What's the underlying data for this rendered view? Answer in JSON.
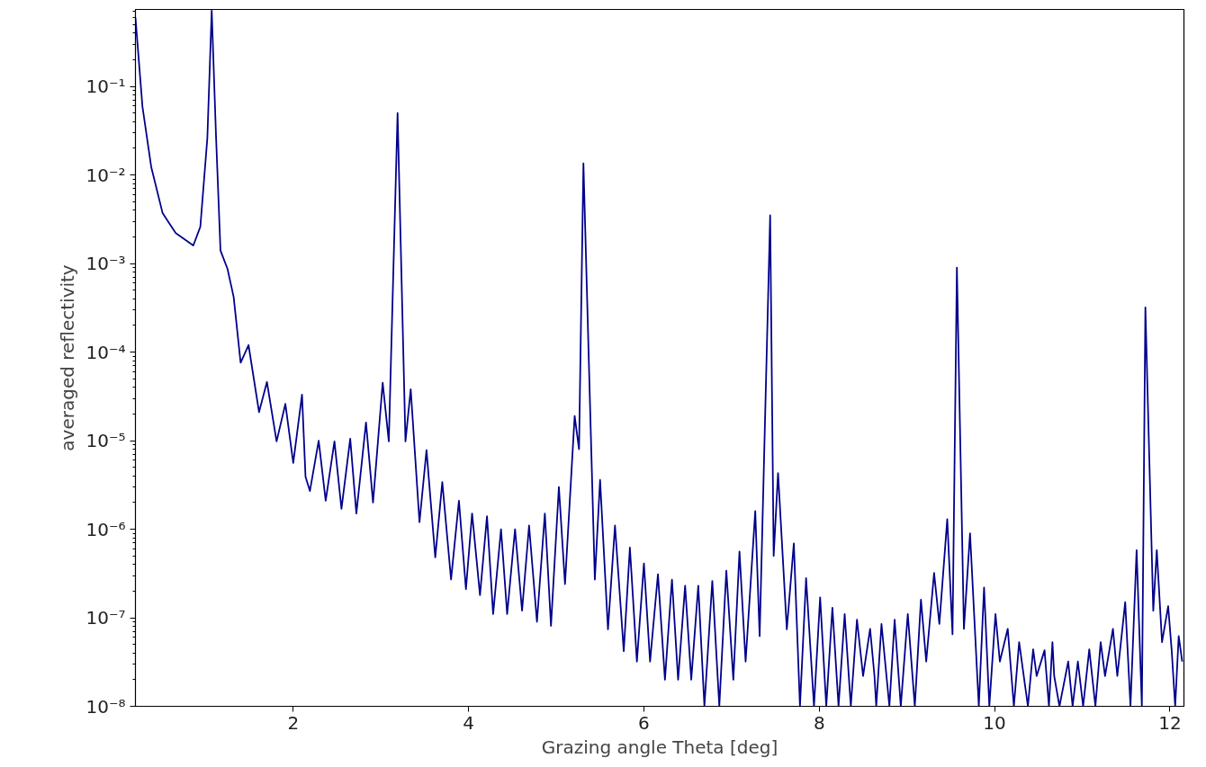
{
  "chart_data": {
    "type": "line",
    "xlabel": "Grazing angle Theta [deg]",
    "ylabel": "averaged reflectivity",
    "log": "y",
    "grid": false,
    "marker": "none",
    "line_style": "solid",
    "xlim": [
      0.2,
      12.16
    ],
    "ylim": [
      1e-08,
      0.74
    ],
    "xticks": [
      2,
      4,
      6,
      8,
      10,
      12
    ],
    "yticks": [
      {
        "value": 1e-08,
        "label": "10⁻⁸"
      },
      {
        "value": 1e-07,
        "label": "10⁻⁷"
      },
      {
        "value": 1e-06,
        "label": "10⁻⁶"
      },
      {
        "value": 1e-05,
        "label": "10⁻⁵"
      },
      {
        "value": 0.0001,
        "label": "10⁻⁴"
      },
      {
        "value": 0.001,
        "label": "10⁻³"
      },
      {
        "value": 0.01,
        "label": "10⁻²"
      },
      {
        "value": 0.1,
        "label": "10⁻¹"
      }
    ],
    "series": [
      {
        "color": "#00008b",
        "x": [
          0.2,
          0.28,
          0.38,
          0.51,
          0.66,
          0.86,
          0.94,
          1.02,
          1.07,
          1.12,
          1.17,
          1.25,
          1.32,
          1.4,
          1.49,
          1.61,
          1.7,
          1.81,
          1.91,
          2.0,
          2.1,
          2.14,
          2.19,
          2.29,
          2.37,
          2.47,
          2.55,
          2.65,
          2.72,
          2.83,
          2.91,
          3.02,
          3.09,
          3.19,
          3.28,
          3.34,
          3.44,
          3.52,
          3.62,
          3.7,
          3.8,
          3.89,
          3.97,
          4.04,
          4.13,
          4.21,
          4.28,
          4.37,
          4.44,
          4.53,
          4.61,
          4.69,
          4.78,
          4.87,
          4.94,
          5.03,
          5.1,
          5.21,
          5.26,
          5.31,
          5.44,
          5.5,
          5.59,
          5.67,
          5.77,
          5.84,
          5.92,
          6.0,
          6.07,
          6.16,
          6.24,
          6.32,
          6.39,
          6.47,
          6.54,
          6.62,
          6.69,
          6.78,
          6.86,
          6.94,
          7.02,
          7.09,
          7.16,
          7.27,
          7.32,
          7.44,
          7.48,
          7.53,
          7.63,
          7.71,
          7.78,
          7.85,
          7.94,
          8.01,
          8.08,
          8.15,
          8.22,
          8.29,
          8.36,
          8.43,
          8.5,
          8.58,
          8.63,
          8.65,
          8.71,
          8.8,
          8.86,
          8.93,
          9.01,
          9.09,
          9.16,
          9.22,
          9.31,
          9.37,
          9.46,
          9.52,
          9.57,
          9.65,
          9.72,
          9.82,
          9.88,
          9.94,
          10.01,
          10.06,
          10.15,
          10.22,
          10.28,
          10.38,
          10.44,
          10.48,
          10.57,
          10.62,
          10.66,
          10.68,
          10.74,
          10.84,
          10.89,
          10.95,
          11.01,
          11.08,
          11.15,
          11.21,
          11.26,
          11.35,
          11.4,
          11.49,
          11.55,
          11.62,
          11.68,
          11.72,
          11.81,
          11.85,
          11.91,
          11.98,
          12.02,
          12.06,
          12.1,
          12.14
        ],
        "values": [
          0.6,
          0.059,
          0.0123,
          0.0037,
          0.0022,
          0.0016,
          0.0026,
          0.026,
          0.72,
          0.026,
          0.0014,
          0.00087,
          0.00042,
          7.6e-05,
          0.00012,
          2.1e-05,
          4.6e-05,
          9.8e-06,
          2.6e-05,
          5.6e-06,
          3.3e-05,
          3.9e-06,
          2.7e-06,
          1e-05,
          2.1e-06,
          9.8e-06,
          1.7e-06,
          1.05e-05,
          1.5e-06,
          1.6e-05,
          2e-06,
          4.5e-05,
          9.8e-06,
          0.05,
          9.8e-06,
          3.8e-05,
          1.2e-06,
          7.8e-06,
          4.8e-07,
          3.4e-06,
          2.7e-07,
          2.1e-06,
          2.1e-07,
          1.5e-06,
          1.8e-07,
          1.4e-06,
          1.1e-07,
          1e-06,
          1.1e-07,
          1e-06,
          1.2e-07,
          1.1e-06,
          9e-08,
          1.5e-06,
          8.1e-08,
          3e-06,
          2.4e-07,
          1.9e-05,
          8e-06,
          0.0135,
          2.7e-07,
          3.6e-06,
          7.4e-08,
          1.1e-06,
          4.2e-08,
          6.2e-07,
          3.2e-08,
          4.1e-07,
          3.2e-08,
          3.1e-07,
          2e-08,
          2.7e-07,
          2e-08,
          2.3e-07,
          2e-08,
          2.3e-07,
          1e-08,
          2.6e-07,
          1e-08,
          3.4e-07,
          2e-08,
          5.6e-07,
          3.2e-08,
          1.6e-06,
          6.2e-08,
          0.0035,
          5e-07,
          4.3e-06,
          7.4e-08,
          6.9e-07,
          1e-08,
          2.8e-07,
          1e-08,
          1.7e-07,
          1e-08,
          1.3e-07,
          1e-08,
          1.1e-07,
          1e-08,
          9.5e-08,
          2.2e-08,
          7.5e-08,
          2.2e-08,
          1e-08,
          8.5e-08,
          1e-08,
          9.5e-08,
          1e-08,
          1.1e-07,
          1e-08,
          1.6e-07,
          3.2e-08,
          3.2e-07,
          8.5e-08,
          1.3e-06,
          6.5e-08,
          0.0009,
          7.5e-08,
          9e-07,
          1e-08,
          2.2e-07,
          1e-08,
          1.1e-07,
          3.2e-08,
          7.5e-08,
          1e-08,
          5.3e-08,
          1e-08,
          4.4e-08,
          2.2e-08,
          4.3e-08,
          1e-08,
          5.3e-08,
          2.2e-08,
          1e-08,
          3.2e-08,
          1e-08,
          3.2e-08,
          1e-08,
          4.4e-08,
          1e-08,
          5.3e-08,
          2.2e-08,
          7.5e-08,
          2.2e-08,
          1.5e-07,
          1e-08,
          5.8e-07,
          1e-08,
          0.00032,
          1.2e-07,
          5.8e-07,
          5.3e-08,
          1.35e-07,
          4.3e-08,
          1e-08,
          6.2e-08,
          3.2e-08
        ]
      }
    ]
  }
}
